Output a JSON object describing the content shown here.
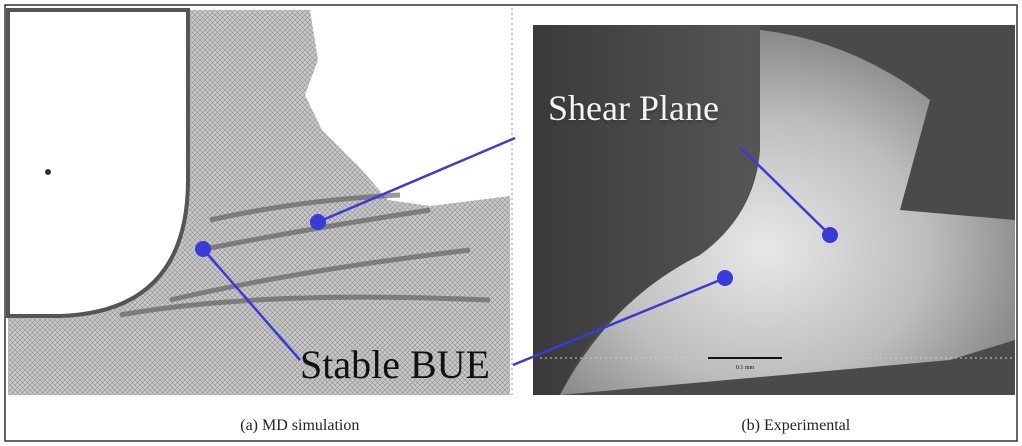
{
  "annotations": {
    "shear_plane": "Shear Plane",
    "stable_bue": "Stable BUE"
  },
  "panels": [
    {
      "label": "(a)",
      "caption": "MD simulation"
    },
    {
      "label": "(b)",
      "caption": "Experimental"
    }
  ],
  "scale_bar": "0.1 mm"
}
